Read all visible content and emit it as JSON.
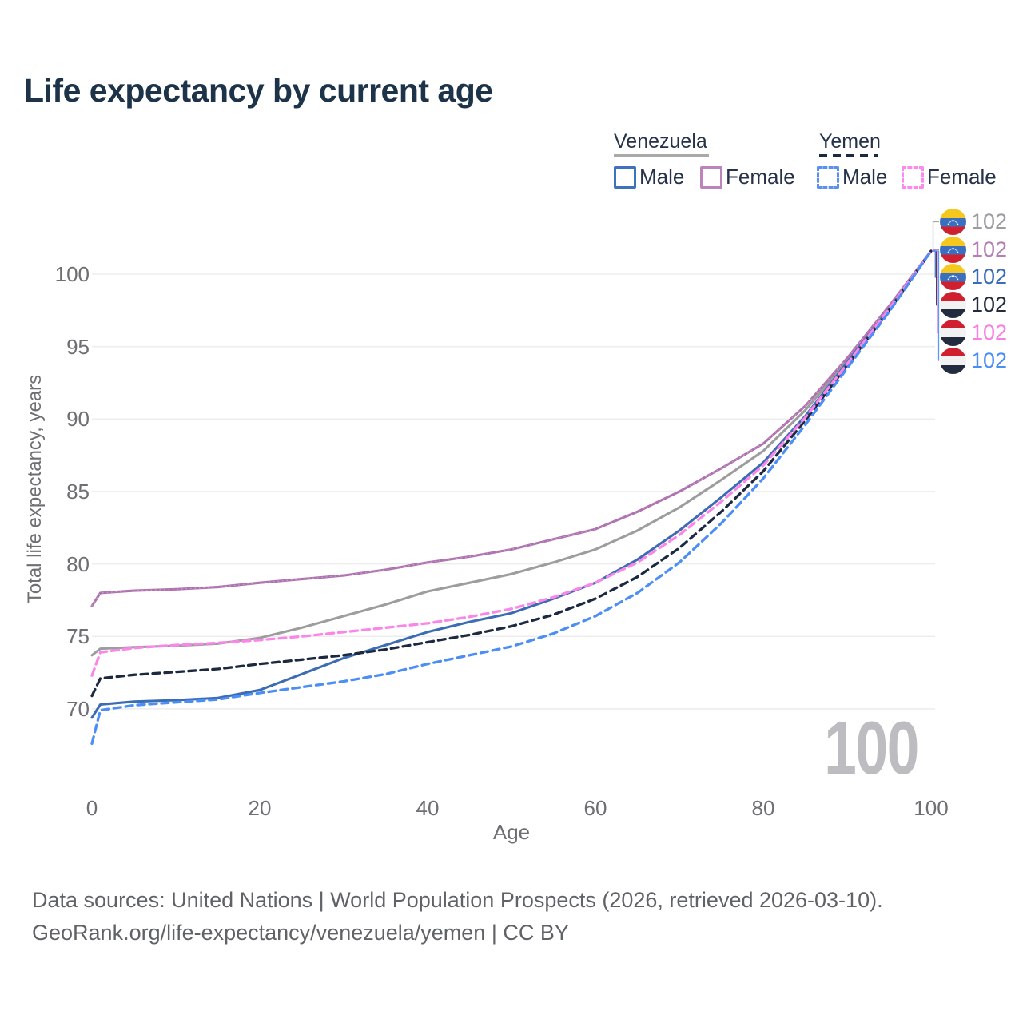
{
  "title": "Life expectancy by current age",
  "legend": {
    "venezuela": {
      "label": "Venezuela",
      "male": "Male",
      "female": "Female"
    },
    "yemen": {
      "label": "Yemen",
      "male": "Male",
      "female": "Female"
    }
  },
  "watermark": "100",
  "end_labels": [
    {
      "value": "102",
      "flag": "venezuela",
      "color": "#9c9ca0"
    },
    {
      "value": "102",
      "flag": "venezuela",
      "color": "#b57fb5"
    },
    {
      "value": "102",
      "flag": "venezuela",
      "color": "#3a6cb8"
    },
    {
      "value": "102",
      "flag": "yemen",
      "color": "#232c3e"
    },
    {
      "value": "102",
      "flag": "yemen",
      "color": "#f87fe3"
    },
    {
      "value": "102",
      "flag": "yemen",
      "color": "#4a8ef5"
    }
  ],
  "footer": {
    "line1": "Data sources: United Nations | World Population Prospects (2026, retrieved 2026-03-10).",
    "line2": "GeoRank.org/life-expectancy/venezuela/yemen | CC BY"
  },
  "colors": {
    "ve_male": "#3b6cb4",
    "ve_female": "#af72b0",
    "ve_total": "#9d9d9d",
    "ye_male": "#4a8ef6",
    "ye_female": "#fb85e9",
    "ye_total": "#1d2941",
    "grid": "#ededee",
    "title_text": "#1d3349",
    "axis_text": "#6e6e73"
  },
  "chart_data": {
    "type": "line",
    "title": "Life expectancy by current age",
    "xlabel": "Age",
    "ylabel": "Total life expectancy, years",
    "x_ticks": [
      0,
      20,
      40,
      60,
      80,
      100
    ],
    "y_ticks": [
      70,
      75,
      80,
      85,
      90,
      95,
      100
    ],
    "xlim": [
      0,
      100
    ],
    "ylim": [
      67,
      102.5
    ],
    "grid": true,
    "legend_position": "top-right",
    "x": [
      0,
      1,
      5,
      10,
      15,
      20,
      25,
      30,
      35,
      40,
      45,
      50,
      55,
      60,
      65,
      70,
      75,
      80,
      85,
      90,
      95,
      100
    ],
    "series": [
      {
        "name": "Venezuela",
        "color": "#9d9d9d",
        "dashed": false,
        "values": [
          73.7,
          74.15,
          74.25,
          74.35,
          74.5,
          74.9,
          75.6,
          76.4,
          77.2,
          78.1,
          78.7,
          79.3,
          80.1,
          81.0,
          82.3,
          83.9,
          85.8,
          87.8,
          90.6,
          94.0,
          97.7,
          101.6
        ]
      },
      {
        "name": "Venezuela Female",
        "color": "#af72b0",
        "dashed": false,
        "values": [
          77.1,
          78.0,
          78.15,
          78.25,
          78.4,
          78.7,
          78.95,
          79.2,
          79.6,
          80.1,
          80.5,
          81.0,
          81.7,
          82.4,
          83.6,
          85.0,
          86.6,
          88.3,
          90.9,
          94.2,
          97.8,
          101.6
        ]
      },
      {
        "name": "Venezuela Male",
        "color": "#3b6cb4",
        "dashed": false,
        "values": [
          69.4,
          70.3,
          70.5,
          70.6,
          70.75,
          71.3,
          72.4,
          73.5,
          74.4,
          75.3,
          76.0,
          76.6,
          77.6,
          78.7,
          80.3,
          82.3,
          84.6,
          87.0,
          90.2,
          93.9,
          97.6,
          101.6
        ]
      },
      {
        "name": "Yemen",
        "color": "#1d2941",
        "dashed": true,
        "values": [
          70.9,
          72.1,
          72.35,
          72.55,
          72.75,
          73.1,
          73.4,
          73.7,
          74.1,
          74.6,
          75.1,
          75.7,
          76.5,
          77.6,
          79.1,
          81.1,
          83.6,
          86.4,
          89.9,
          93.7,
          97.5,
          101.6
        ]
      },
      {
        "name": "Yemen Female",
        "color": "#fb85e9",
        "dashed": true,
        "values": [
          72.3,
          73.9,
          74.2,
          74.4,
          74.55,
          74.75,
          75.0,
          75.3,
          75.6,
          75.9,
          76.35,
          76.9,
          77.7,
          78.7,
          80.1,
          82.0,
          84.3,
          86.8,
          90.1,
          93.8,
          97.6,
          101.6
        ]
      },
      {
        "name": "Yemen Male",
        "color": "#4a8ef6",
        "dashed": true,
        "values": [
          67.6,
          69.9,
          70.25,
          70.45,
          70.65,
          71.1,
          71.5,
          71.9,
          72.4,
          73.1,
          73.7,
          74.3,
          75.2,
          76.4,
          78.0,
          80.1,
          82.8,
          85.9,
          89.6,
          93.5,
          97.4,
          101.6
        ]
      }
    ]
  }
}
